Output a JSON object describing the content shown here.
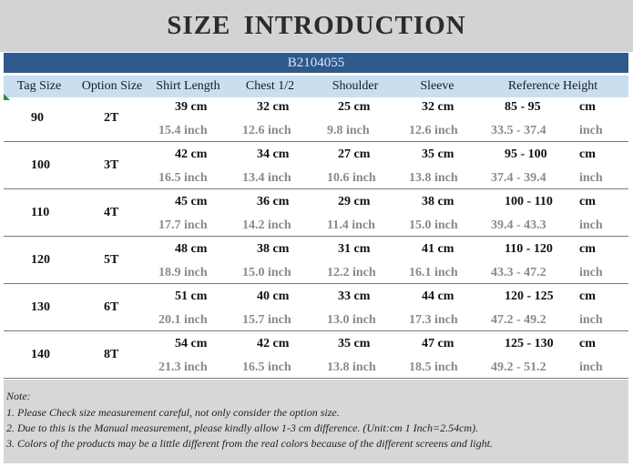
{
  "title": "SIZE  INTRODUCTION",
  "product_code": "B2104055",
  "headers": [
    "Tag Size",
    "Option Size",
    "Shirt Length",
    "Chest 1/2",
    "Shoulder",
    "Sleeve",
    "Reference Height"
  ],
  "rows": [
    {
      "tag": "90",
      "option": "2T",
      "length_cm": "39 cm",
      "chest_cm": "32 cm",
      "shoulder_cm": "25 cm",
      "sleeve_cm": "32 cm",
      "height_cm": "85  -  95",
      "height_unit": "cm",
      "length_in": "15.4  inch",
      "chest_in": "12.6  inch",
      "shoulder_in": "9.8  inch",
      "sleeve_in": "12.6  inch",
      "height_in": "33.5  -  37.4",
      "height_in_unit": "inch"
    },
    {
      "tag": "100",
      "option": "3T",
      "length_cm": "42 cm",
      "chest_cm": "34 cm",
      "shoulder_cm": "27 cm",
      "sleeve_cm": "35 cm",
      "height_cm": "95  -  100",
      "height_unit": "cm",
      "length_in": "16.5  inch",
      "chest_in": "13.4  inch",
      "shoulder_in": "10.6  inch",
      "sleeve_in": "13.8  inch",
      "height_in": "37.4  -  39.4",
      "height_in_unit": "inch"
    },
    {
      "tag": "110",
      "option": "4T",
      "length_cm": "45 cm",
      "chest_cm": "36 cm",
      "shoulder_cm": "29 cm",
      "sleeve_cm": "38 cm",
      "height_cm": "100  -  110",
      "height_unit": "cm",
      "length_in": "17.7  inch",
      "chest_in": "14.2  inch",
      "shoulder_in": "11.4  inch",
      "sleeve_in": "15.0  inch",
      "height_in": "39.4  -  43.3",
      "height_in_unit": "inch"
    },
    {
      "tag": "120",
      "option": "5T",
      "length_cm": "48 cm",
      "chest_cm": "38 cm",
      "shoulder_cm": "31 cm",
      "sleeve_cm": "41 cm",
      "height_cm": "110  -  120",
      "height_unit": "cm",
      "length_in": "18.9  inch",
      "chest_in": "15.0  inch",
      "shoulder_in": "12.2  inch",
      "sleeve_in": "16.1  inch",
      "height_in": "43.3  -  47.2",
      "height_in_unit": "inch"
    },
    {
      "tag": "130",
      "option": "6T",
      "length_cm": "51 cm",
      "chest_cm": "40 cm",
      "shoulder_cm": "33 cm",
      "sleeve_cm": "44 cm",
      "height_cm": "120  -  125",
      "height_unit": "cm",
      "length_in": "20.1  inch",
      "chest_in": "15.7  inch",
      "shoulder_in": "13.0  inch",
      "sleeve_in": "17.3  inch",
      "height_in": "47.2  -  49.2",
      "height_in_unit": "inch"
    },
    {
      "tag": "140",
      "option": "8T",
      "length_cm": "54 cm",
      "chest_cm": "42 cm",
      "shoulder_cm": "35 cm",
      "sleeve_cm": "47 cm",
      "height_cm": "125  -  130",
      "height_unit": "cm",
      "length_in": "21.3  inch",
      "chest_in": "16.5  inch",
      "shoulder_in": "13.8  inch",
      "sleeve_in": "18.5  inch",
      "height_in": "49.2  -  51.2",
      "height_in_unit": "inch"
    }
  ],
  "notes": {
    "heading": "Note:",
    "items": [
      "1. Please Check size measurement careful, not only consider the option size.",
      "2. Due to this is the Manual measurement, please kindly allow 1-3 cm difference.  (Unit:cm  1 Inch=2.54cm).",
      "3. Colors of the products may be a little different from the real colors because of the different screens and light."
    ]
  },
  "colors": {
    "title_bg": "#d3d3d3",
    "code_bar_bg": "#2e5a8e",
    "header_bg": "#c9dff0",
    "inch_text": "#8a8a8a",
    "notes_bg": "#d7d7d7"
  }
}
